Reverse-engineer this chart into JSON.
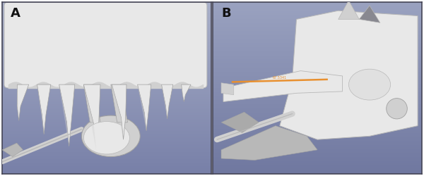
{
  "panel_A_label": "A",
  "panel_B_label": "B",
  "label_fontsize": 13,
  "label_color": "#111111",
  "label_fontweight": "bold",
  "border_color": "#444455",
  "border_linewidth": 1.2,
  "fig_width": 6.0,
  "fig_height": 2.5,
  "dpi": 100,
  "panel_A_bg_top": "#a8afc8",
  "panel_A_bg_bottom": "#7880a8",
  "panel_B_bg_top": "#9aa2c0",
  "panel_B_bg_bottom": "#7078a0",
  "white_color": "#e8e8e8",
  "light_gray": "#d0d0d0",
  "mid_gray": "#b8b8b8",
  "dark_gray": "#a0a0a0",
  "shadow": "#909098"
}
